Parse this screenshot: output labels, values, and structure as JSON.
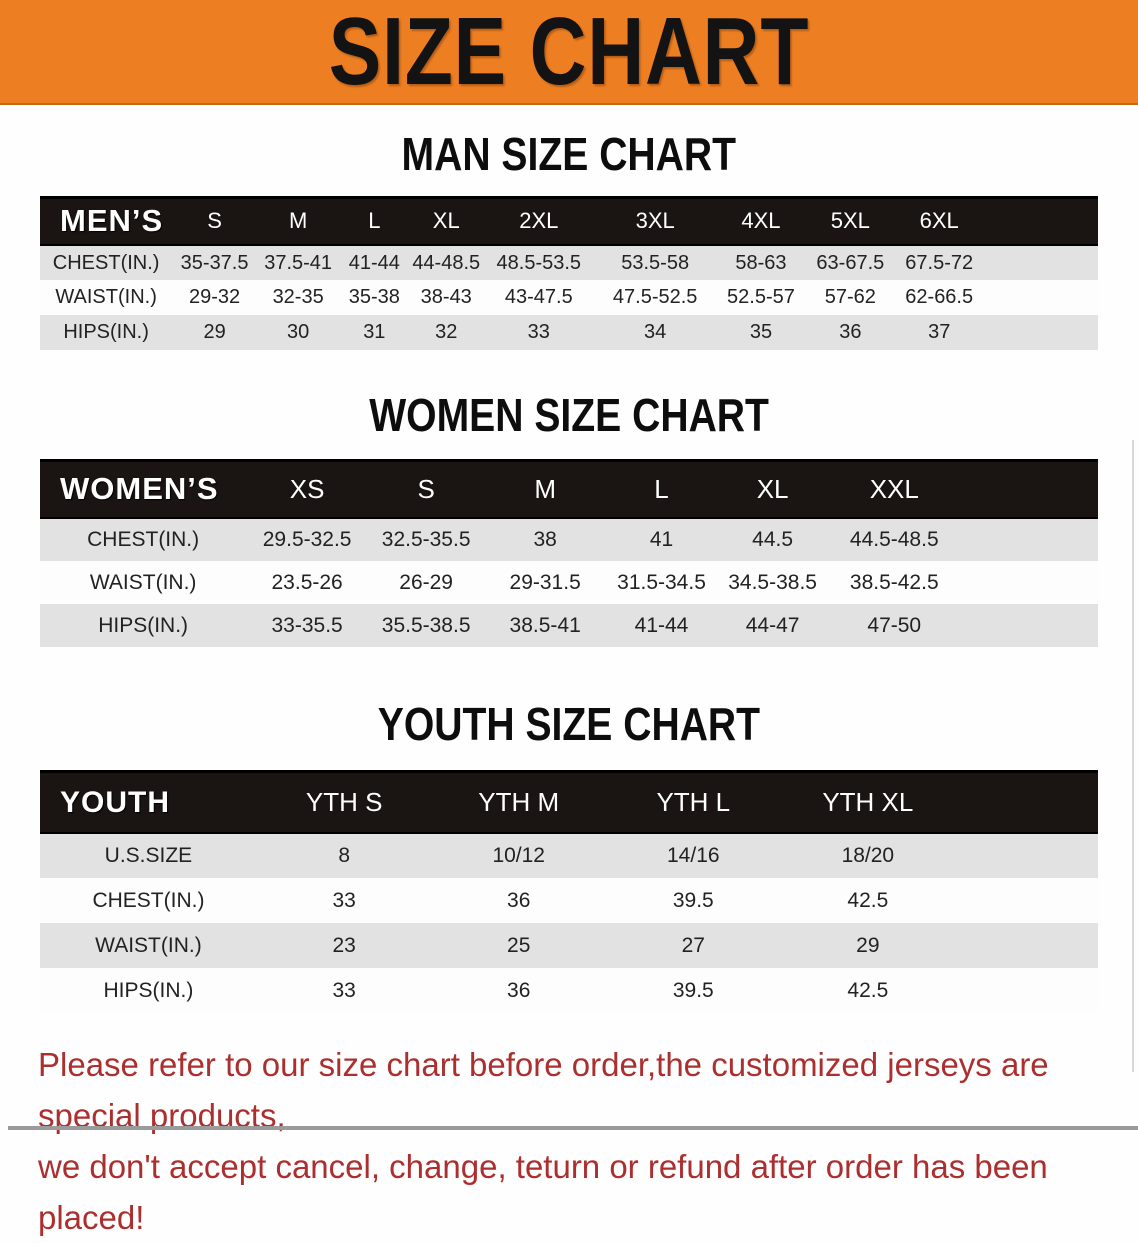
{
  "banner": {
    "title": "SIZE CHART"
  },
  "sections": [
    {
      "id": "mens",
      "heading": "MAN SIZE CHART",
      "table": {
        "corner_label": "MEN’S",
        "columns": [
          "S",
          "M",
          "L",
          "XL",
          "2XL",
          "3XL",
          "4XL",
          "5XL",
          "6XL"
        ],
        "rows": [
          {
            "label": "CHEST(IN.)",
            "values": [
              "35-37.5",
              "37.5-41",
              "41-44",
              "44-48.5",
              "48.5-53.5",
              "53.5-58",
              "58-63",
              "63-67.5",
              "67.5-72"
            ]
          },
          {
            "label": "WAIST(IN.)",
            "values": [
              "29-32",
              "32-35",
              "35-38",
              "38-43",
              "43-47.5",
              "47.5-52.5",
              "52.5-57",
              "57-62",
              "62-66.5"
            ]
          },
          {
            "label": "HIPS(IN.)",
            "values": [
              "29",
              "30",
              "31",
              "32",
              "33",
              "34",
              "35",
              "36",
              "37"
            ]
          }
        ]
      }
    },
    {
      "id": "womens",
      "heading": "WOMEN SIZE CHART",
      "table": {
        "corner_label": "WOMEN’S",
        "columns": [
          "XS",
          "S",
          "M",
          "L",
          "XL",
          "XXL"
        ],
        "rows": [
          {
            "label": "CHEST(IN.)",
            "values": [
              "29.5-32.5",
              "32.5-35.5",
              "38",
              "41",
              "44.5",
              "44.5-48.5"
            ]
          },
          {
            "label": "WAIST(IN.)",
            "values": [
              "23.5-26",
              "26-29",
              "29-31.5",
              "31.5-34.5",
              "34.5-38.5",
              "38.5-42.5"
            ]
          },
          {
            "label": "HIPS(IN.)",
            "values": [
              "33-35.5",
              "35.5-38.5",
              "38.5-41",
              "41-44",
              "44-47",
              "47-50"
            ]
          }
        ]
      }
    },
    {
      "id": "youth",
      "heading": "YOUTH SIZE CHART",
      "table": {
        "corner_label": "YOUTH",
        "columns": [
          "YTH S",
          "YTH M",
          "YTH L",
          "YTH XL"
        ],
        "rows": [
          {
            "label": "U.S.SIZE",
            "values": [
              "8",
              "10/12",
              "14/16",
              "18/20"
            ]
          },
          {
            "label": "CHEST(IN.)",
            "values": [
              "33",
              "36",
              "39.5",
              "42.5"
            ]
          },
          {
            "label": "WAIST(IN.)",
            "values": [
              "23",
              "25",
              "27",
              "29"
            ]
          },
          {
            "label": "HIPS(IN.)",
            "values": [
              "33",
              "36",
              "39.5",
              "42.5"
            ]
          }
        ]
      }
    }
  ],
  "notice": {
    "line1": "Please refer to our size chart before order,the customized jerseys are special products,",
    "line2": "we don't accept cancel, change, teturn or refund after order has been placed!"
  },
  "colors": {
    "banner_orange": "#ED7F22",
    "header_bar_black": "#1A1512",
    "row_stripe_gray": "#E2E2E2",
    "notice_red": "#AC2F2F"
  }
}
